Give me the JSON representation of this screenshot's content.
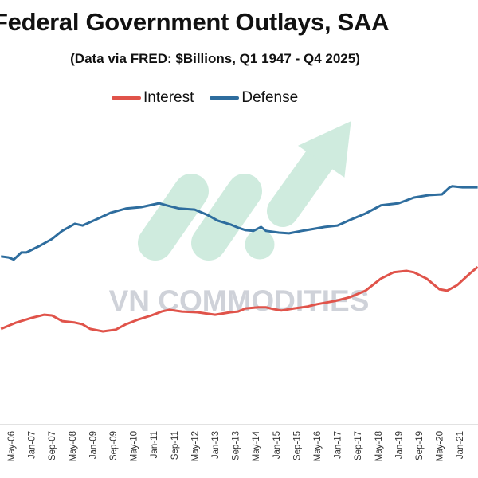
{
  "chart_data": {
    "type": "line",
    "title": "Federal Government Outlays, SAA",
    "subtitle": "(Data via FRED: $Billions, Q1 1947 - Q4 2025)",
    "xlabel": "",
    "ylabel": "",
    "grid": false,
    "legend_placement": "top-center",
    "x_tick_labels": [
      "May-06",
      "Jan-07",
      "Sep-07",
      "May-08",
      "Jan-09",
      "Sep-09",
      "May-10",
      "Jan-11",
      "Sep-11",
      "May-12",
      "Jan-13",
      "Sep-13",
      "May-14",
      "Jan-15",
      "Sep-15",
      "May-16",
      "Jan-17",
      "Sep-17",
      "May-18",
      "Jan-19",
      "Sep-19",
      "May-20",
      "Jan-21"
    ],
    "series": [
      {
        "name": "Interest",
        "color": "#e0534a",
        "points": [
          [
            "2006-01",
            331
          ],
          [
            "2006-07",
            349
          ],
          [
            "2007-01",
            362
          ],
          [
            "2007-06",
            371
          ],
          [
            "2007-09",
            369
          ],
          [
            "2008-01",
            353
          ],
          [
            "2008-06",
            349
          ],
          [
            "2008-09",
            344
          ],
          [
            "2008-12",
            331
          ],
          [
            "2009-05",
            324
          ],
          [
            "2009-10",
            329
          ],
          [
            "2010-02",
            344
          ],
          [
            "2010-07",
            358
          ],
          [
            "2010-12",
            369
          ],
          [
            "2011-04",
            380
          ],
          [
            "2011-07",
            385
          ],
          [
            "2011-12",
            380
          ],
          [
            "2012-06",
            378
          ],
          [
            "2013-01",
            371
          ],
          [
            "2013-07",
            378
          ],
          [
            "2013-10",
            380
          ],
          [
            "2014-01",
            389
          ],
          [
            "2014-06",
            392
          ],
          [
            "2014-09",
            392
          ],
          [
            "2014-12",
            387
          ],
          [
            "2015-03",
            383
          ],
          [
            "2015-08",
            389
          ],
          [
            "2016-01",
            394
          ],
          [
            "2016-05",
            401
          ],
          [
            "2016-12",
            410
          ],
          [
            "2017-06",
            421
          ],
          [
            "2017-12",
            439
          ],
          [
            "2018-06",
            473
          ],
          [
            "2018-11",
            491
          ],
          [
            "2019-04",
            495
          ],
          [
            "2019-07",
            491
          ],
          [
            "2019-12",
            473
          ],
          [
            "2020-05",
            443
          ],
          [
            "2020-08",
            439
          ],
          [
            "2020-12",
            455
          ],
          [
            "2021-05",
            488
          ],
          [
            "2021-08",
            506
          ]
        ]
      },
      {
        "name": "Defense",
        "color": "#2e6d9e",
        "points": [
          [
            "2006-01",
            536
          ],
          [
            "2006-04",
            533
          ],
          [
            "2006-06",
            527
          ],
          [
            "2006-09",
            547
          ],
          [
            "2006-11",
            547
          ],
          [
            "2007-04",
            565
          ],
          [
            "2007-09",
            585
          ],
          [
            "2008-01",
            608
          ],
          [
            "2008-06",
            628
          ],
          [
            "2008-09",
            623
          ],
          [
            "2009-02",
            639
          ],
          [
            "2009-08",
            659
          ],
          [
            "2010-02",
            671
          ],
          [
            "2010-08",
            675
          ],
          [
            "2011-03",
            686
          ],
          [
            "2011-06",
            680
          ],
          [
            "2011-11",
            671
          ],
          [
            "2012-05",
            668
          ],
          [
            "2012-10",
            653
          ],
          [
            "2013-02",
            637
          ],
          [
            "2013-07",
            626
          ],
          [
            "2013-10",
            617
          ],
          [
            "2014-01",
            610
          ],
          [
            "2014-04",
            608
          ],
          [
            "2014-07",
            619
          ],
          [
            "2014-09",
            608
          ],
          [
            "2015-02",
            603
          ],
          [
            "2015-06",
            601
          ],
          [
            "2015-11",
            608
          ],
          [
            "2016-04",
            614
          ],
          [
            "2016-08",
            619
          ],
          [
            "2017-01",
            623
          ],
          [
            "2017-06",
            639
          ],
          [
            "2017-12",
            657
          ],
          [
            "2018-06",
            680
          ],
          [
            "2019-01",
            686
          ],
          [
            "2019-07",
            702
          ],
          [
            "2020-01",
            709
          ],
          [
            "2020-06",
            711
          ],
          [
            "2020-09",
            731
          ],
          [
            "2020-10",
            734
          ],
          [
            "2021-02",
            731
          ],
          [
            "2021-08",
            731
          ]
        ]
      }
    ]
  },
  "watermark": {
    "text": "VN COMMODITIES",
    "logo_color": "#a8dcc4"
  }
}
